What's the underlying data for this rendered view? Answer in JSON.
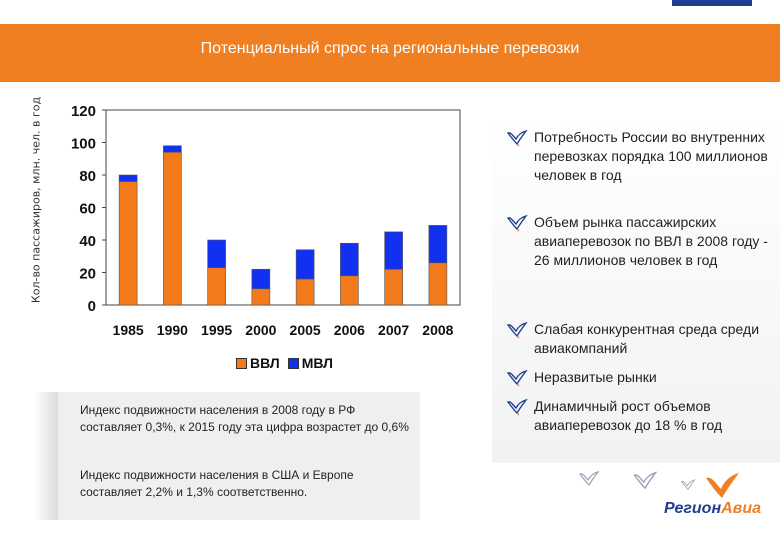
{
  "header": {
    "title": "Потенциальный спрос на региональные перевозки"
  },
  "colors": {
    "accent_orange": "#f07f22",
    "accent_blue": "#1f3e8f",
    "series_vvl": "#f27a1a",
    "series_mvl": "#1230f0"
  },
  "chart_data": {
    "type": "bar",
    "stacked": true,
    "categories": [
      "1985",
      "1990",
      "1995",
      "2000",
      "2005",
      "2006",
      "2007",
      "2008"
    ],
    "series": [
      {
        "name": "ВВЛ",
        "values": [
          76,
          94,
          23,
          10,
          16,
          18,
          22,
          26
        ]
      },
      {
        "name": "МВЛ",
        "values": [
          4,
          4,
          17,
          12,
          18,
          20,
          23,
          23
        ]
      }
    ],
    "ylabel": "Кол-во пассажиров, млн. чел. в год",
    "xlabel": "",
    "ylim": [
      0,
      120
    ],
    "yticks": [
      0,
      20,
      40,
      60,
      80,
      100,
      120
    ],
    "legend_position": "bottom",
    "grid": false
  },
  "notes": [
    "Индекс подвижности населения в 2008 году в РФ составляет 0,3%, к 2015 году эта цифра возрастет до 0,6%",
    "Индекс подвижности населения в США и Европе составляет 2,2% и 1,3% соответственно."
  ],
  "bullets": [
    "Потребность России во внутренних перевозках порядка 100 миллионов человек в год",
    "Объем рынка пассажирских авиаперевозок по ВВЛ в 2008 году - 26 миллионов человек в год",
    "Слабая конкурентная среда среди авиакомпаний",
    "Неразвитые рынки",
    "Динамичный рост объемов авиаперевозок до 18 % в год"
  ],
  "logo": {
    "part1": "Регион",
    "part2": "Авиа",
    "icon": "bird-logo-icon"
  },
  "icons": {
    "bullet": "bird-bullet-icon"
  }
}
